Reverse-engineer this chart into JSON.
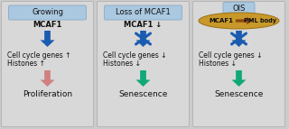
{
  "bg_color": "#cccccc",
  "panels": [
    {
      "title": "Growing",
      "title_bg": "#aac8e0",
      "title_border": "#88aac8",
      "mcaf1_text": "MCAF1",
      "arrow1_color": "#1a5cb0",
      "crossed": false,
      "body_text": [
        "Cell cycle genes ↑",
        "Histones ↑"
      ],
      "arrow2_color": "#d08080",
      "result_text": "Proliferation",
      "has_ellipse": false
    },
    {
      "title": "Loss of MCAF1",
      "title_bg": "#aac8e0",
      "title_border": "#88aac8",
      "mcaf1_text": "MCAF1 ↓",
      "arrow1_color": "#1a5cb0",
      "crossed": true,
      "body_text": [
        "Cell cycle genes ↓",
        "Histones ↓"
      ],
      "arrow2_color": "#10a878",
      "result_text": "Senescence",
      "has_ellipse": false
    },
    {
      "title": "OIS",
      "title_bg": "#aac8e0",
      "title_border": "#88aac8",
      "mcaf1_text": "MCAF1",
      "pml_text": "PML body",
      "arrow1_color": "#1a5cb0",
      "crossed": true,
      "body_text": [
        "Cell cycle genes ↓",
        "Histones ↓"
      ],
      "arrow2_color": "#10a878",
      "result_text": "Senescence",
      "has_ellipse": true,
      "ellipse_color": "#c8982a"
    }
  ]
}
